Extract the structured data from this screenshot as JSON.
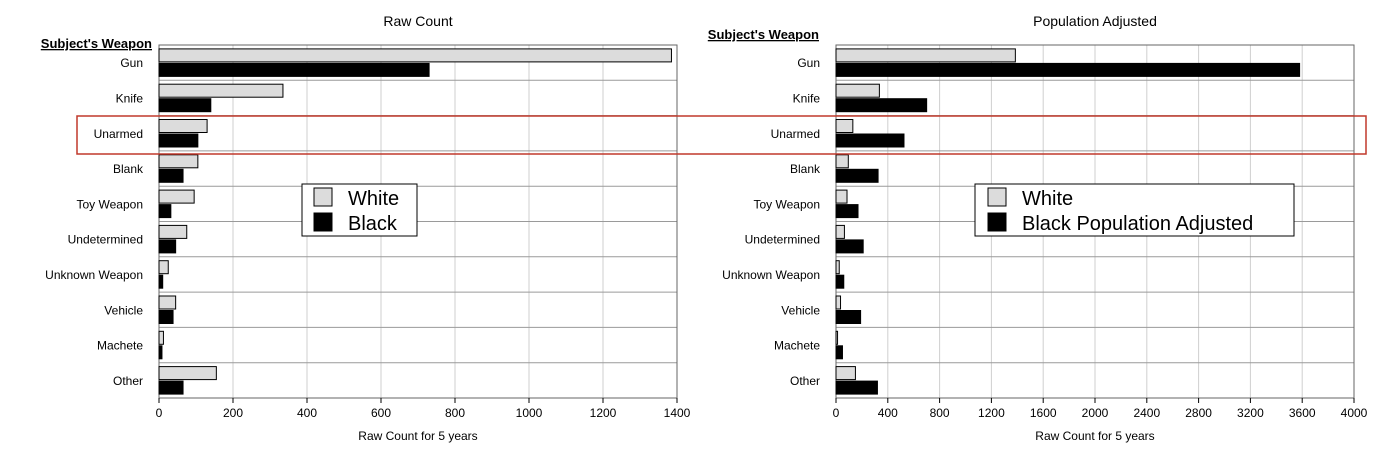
{
  "chart_data": [
    {
      "type": "bar",
      "orientation": "horizontal",
      "title": "Raw Count",
      "ylabel": "Subject's Weapon",
      "xlabel": "Raw Count for 5 years",
      "categories": [
        "Gun",
        "Knife",
        "Unarmed",
        "Blank",
        "Toy Weapon",
        "Undetermined",
        "Unknown Weapon",
        "Vehicle",
        "Machete",
        "Other"
      ],
      "series": [
        {
          "name": "White",
          "color": "#dcdcdc",
          "values": [
            1385,
            335,
            130,
            105,
            95,
            75,
            25,
            45,
            12,
            155
          ]
        },
        {
          "name": "Black",
          "color": "#000000",
          "values": [
            730,
            140,
            105,
            65,
            32,
            45,
            10,
            38,
            8,
            65
          ]
        }
      ],
      "xlim": [
        0,
        1400
      ],
      "xticks": [
        "0",
        "200",
        "400",
        "600",
        "800",
        "1000",
        "1200",
        "1400"
      ],
      "grid": "vertical",
      "legend_placement": "center"
    },
    {
      "type": "bar",
      "orientation": "horizontal",
      "title": "Population Adjusted",
      "ylabel": "Subject's Weapon",
      "xlabel": "Raw Count for 5 years",
      "categories": [
        "Gun",
        "Knife",
        "Unarmed",
        "Blank",
        "Toy Weapon",
        "Undetermined",
        "Unknown Weapon",
        "Vehicle",
        "Machete",
        "Other"
      ],
      "series": [
        {
          "name": "White",
          "color": "#dcdcdc",
          "values": [
            1385,
            335,
            130,
            95,
            85,
            65,
            25,
            35,
            12,
            150
          ]
        },
        {
          "name": "Black Population Adjusted",
          "color": "#000000",
          "values": [
            3580,
            700,
            525,
            325,
            170,
            210,
            60,
            190,
            50,
            320
          ]
        }
      ],
      "xlim": [
        0,
        4000
      ],
      "xticks": [
        "0",
        "400",
        "800",
        "1200",
        "1600",
        "2000",
        "2400",
        "2800",
        "3200",
        "3600",
        "4000"
      ],
      "grid": "vertical",
      "legend_placement": "center"
    }
  ],
  "highlight": {
    "category": "Unarmed",
    "color": "#c0392b"
  }
}
